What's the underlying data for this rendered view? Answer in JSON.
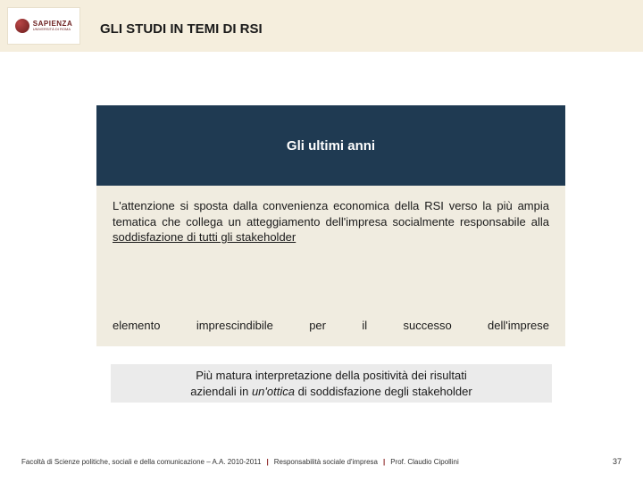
{
  "header": {
    "logo_name": "SAPIENZA",
    "logo_subtitle": "UNIVERSITÀ DI ROMA",
    "slide_title": "GLI STUDI IN TEMI DI RSI"
  },
  "dark_block": {
    "title": "Gli ultimi anni"
  },
  "body": {
    "para1_part1": "L'attenzione si sposta dalla convenienza economica della RSI verso la più ampia tematica che collega un atteggiamento dell'impresa socialmente responsabile alla ",
    "para1_underlined": "soddisfazione di tutti gli stakeholder",
    "para2": "elemento imprescindibile per il successo dell'imprese"
  },
  "callout": {
    "line1": "Più matura interpretazione della positività dei risultati",
    "line2_a": "aziendali in ",
    "line2_italic": "un'ottica",
    "line2_b": " di soddisfazione degli stakeholder"
  },
  "footer": {
    "faculty": "Facoltà di Scienze politiche, sociali e della comunicazione – A.A. 2010-2011",
    "course": "Responsabilità sociale d'impresa",
    "prof": "Prof. Claudio Cipollini",
    "page": "37",
    "separator": "|"
  },
  "colors": {
    "header_band": "#f5eedd",
    "dark_block_bg": "#1f3a52",
    "light_block_bg": "#f0ece0",
    "logo_dark": "#6b1e1e",
    "text": "#1a1a1a",
    "sep": "#8a2020"
  }
}
